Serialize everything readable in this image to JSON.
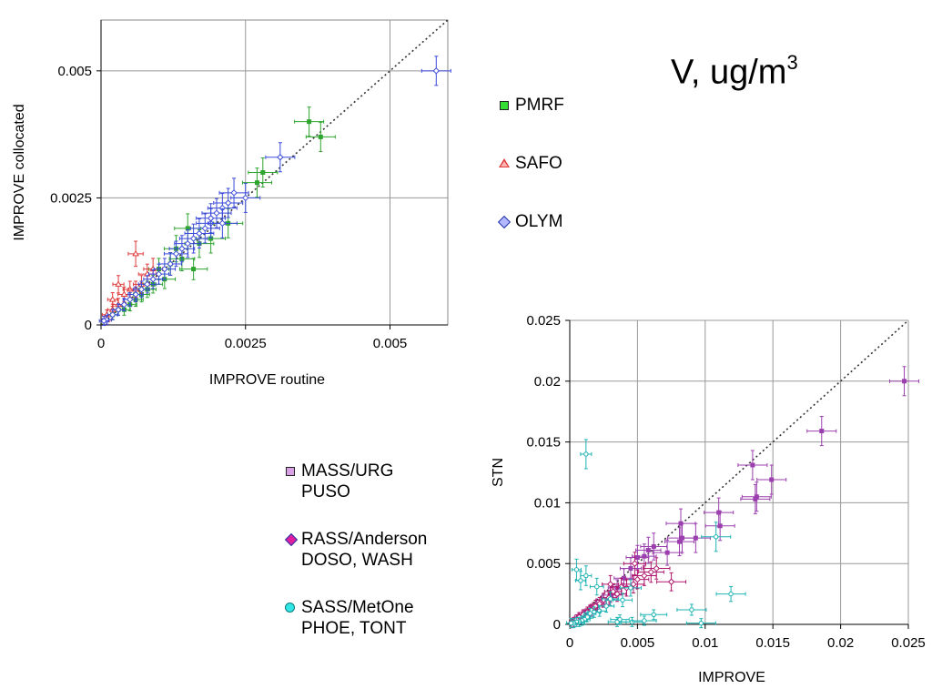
{
  "title": {
    "main": "V, ug/m",
    "sup": "3"
  },
  "colors": {
    "PMRF": "#2ea52e",
    "SAFO": "#e03b3b",
    "OLYM": "#3a4ad8",
    "MASS": "#9b3fae",
    "RASS": "#b0166e",
    "SASS": "#1fb3b3",
    "grid": "#999999"
  },
  "legend_top": [
    {
      "label": "PMRF",
      "marker": "square",
      "color": "#33dd33"
    },
    {
      "label": "SAFO",
      "marker": "triangle",
      "color": "#ffb3b3"
    },
    {
      "label": "OLYM",
      "marker": "diamond",
      "color": "#b3b8ff"
    }
  ],
  "legend_bottom": [
    {
      "line1": "MASS/URG",
      "line2": "PUSO",
      "marker": "square",
      "color": "#d9a0e6"
    },
    {
      "line1": "RASS/Anderson",
      "line2": "DOSO, WASH",
      "marker": "diamond",
      "color": "#e01fa0"
    },
    {
      "line1": "SASS/MetOne",
      "line2": "PHOE, TONT",
      "marker": "circle",
      "color": "#33e6e6"
    }
  ],
  "chart_data": [
    {
      "type": "scatter",
      "title": "",
      "xlabel": "IMPROVE routine",
      "ylabel": "IMPROVE collocated",
      "xlim": [
        0,
        0.006
      ],
      "ylim": [
        0,
        0.006
      ],
      "xticks": [
        "0",
        "0.0025",
        "0.005"
      ],
      "yticks": [
        "0",
        "0.0025",
        "0.005"
      ],
      "tick_values": [
        0,
        0.0025,
        0.005
      ],
      "one_to_one_line": true,
      "grid": true,
      "series": [
        {
          "name": "PMRF",
          "points": [
            [
              0.0036,
              0.004
            ],
            [
              0.0038,
              0.0037
            ],
            [
              0.0028,
              0.003
            ],
            [
              0.0027,
              0.0028
            ],
            [
              0.0022,
              0.002
            ],
            [
              0.0019,
              0.0017
            ],
            [
              0.0016,
              0.0011
            ],
            [
              0.0015,
              0.0019
            ],
            [
              0.0013,
              0.0015
            ],
            [
              0.0012,
              0.0012
            ],
            [
              0.001,
              0.0011
            ],
            [
              0.0009,
              0.0008
            ],
            [
              0.0008,
              0.0007
            ],
            [
              0.0007,
              0.0006
            ],
            [
              0.0006,
              0.0005
            ],
            [
              0.0005,
              0.0004
            ],
            [
              0.0004,
              0.0003
            ],
            [
              0.0003,
              0.0003
            ],
            [
              0.0002,
              0.0002
            ],
            [
              0.0011,
              0.0009
            ],
            [
              0.0014,
              0.0013
            ],
            [
              0.0017,
              0.0016
            ]
          ]
        },
        {
          "name": "SAFO",
          "points": [
            [
              0.0006,
              0.0014
            ],
            [
              0.0003,
              0.0008
            ],
            [
              0.0002,
              0.0005
            ],
            [
              0.0004,
              0.0006
            ],
            [
              0.0001,
              0.0002
            ],
            [
              0.0005,
              0.0007
            ],
            [
              0.0007,
              0.0008
            ],
            [
              0.0008,
              0.001
            ],
            [
              0.0009,
              0.0011
            ],
            [
              0.0001,
              0.0001
            ],
            [
              0.0002,
              0.0003
            ],
            [
              0.0003,
              0.0004
            ],
            [
              0.0006,
              0.0007
            ]
          ]
        },
        {
          "name": "OLYM",
          "points": [
            [
              0.0058,
              0.005
            ],
            [
              0.0031,
              0.0033
            ],
            [
              0.0025,
              0.0025
            ],
            [
              0.0023,
              0.0026
            ],
            [
              0.0022,
              0.0024
            ],
            [
              0.0021,
              0.0023
            ],
            [
              0.002,
              0.0022
            ],
            [
              0.0019,
              0.002
            ],
            [
              0.0018,
              0.0019
            ],
            [
              0.0016,
              0.0017
            ],
            [
              0.0015,
              0.0016
            ],
            [
              0.0014,
              0.0015
            ],
            [
              0.0013,
              0.0014
            ],
            [
              0.0012,
              0.0012
            ],
            [
              0.0011,
              0.0011
            ],
            [
              0.001,
              0.001
            ],
            [
              0.0009,
              0.0009
            ],
            [
              0.0008,
              0.0008
            ],
            [
              0.0007,
              0.0007
            ],
            [
              0.0006,
              0.0006
            ],
            [
              0.0005,
              0.0005
            ],
            [
              0.0004,
              0.0004
            ],
            [
              0.0003,
              0.0003
            ],
            [
              0.0002,
              0.0002
            ],
            [
              0.0001,
              0.0001
            ],
            [
              5e-05,
              8e-05
            ],
            [
              0.0017,
              0.0018
            ],
            [
              0.0019,
              0.0021
            ],
            [
              0.0021,
              0.002
            ]
          ]
        }
      ]
    },
    {
      "type": "scatter",
      "title": "",
      "xlabel": "IMPROVE",
      "ylabel": "STN",
      "xlim": [
        0,
        0.025
      ],
      "ylim": [
        0,
        0.025
      ],
      "xticks": [
        "0",
        "0.005",
        "0.01",
        "0.015",
        "0.02",
        "0.025"
      ],
      "yticks": [
        "0",
        "0.005",
        "0.01",
        "0.015",
        "0.02",
        "0.025"
      ],
      "tick_values": [
        0,
        0.005,
        0.01,
        0.015,
        0.02,
        0.025
      ],
      "one_to_one_line": true,
      "grid": true,
      "series": [
        {
          "name": "MASS/URG",
          "points": [
            [
              0.0247,
              0.02
            ],
            [
              0.0186,
              0.0159
            ],
            [
              0.0135,
              0.0131
            ],
            [
              0.0149,
              0.0119
            ],
            [
              0.0137,
              0.0103
            ],
            [
              0.0138,
              0.0105
            ],
            [
              0.011,
              0.0092
            ],
            [
              0.0111,
              0.0081
            ],
            [
              0.0082,
              0.0083
            ],
            [
              0.0083,
              0.0071
            ],
            [
              0.0081,
              0.0068
            ],
            [
              0.0093,
              0.0071
            ],
            [
              0.0072,
              0.0059
            ],
            [
              0.0062,
              0.0064
            ],
            [
              0.0058,
              0.0061
            ],
            [
              0.0055,
              0.0056
            ],
            [
              0.005,
              0.0055
            ],
            [
              0.0045,
              0.0046
            ],
            [
              0.004,
              0.0038
            ],
            [
              0.0035,
              0.003
            ],
            [
              0.003,
              0.0024
            ],
            [
              0.0025,
              0.002
            ],
            [
              0.002,
              0.0015
            ],
            [
              0.0015,
              0.0011
            ],
            [
              0.001,
              0.0008
            ],
            [
              0.0005,
              0.0004
            ]
          ]
        },
        {
          "name": "RASS/Anderson",
          "points": [
            [
              0.0075,
              0.0035
            ],
            [
              0.006,
              0.0043
            ],
            [
              0.0055,
              0.004
            ],
            [
              0.005,
              0.0037
            ],
            [
              0.0047,
              0.0033
            ],
            [
              0.0042,
              0.003
            ],
            [
              0.0038,
              0.0031
            ],
            [
              0.0035,
              0.0025
            ],
            [
              0.0032,
              0.0027
            ],
            [
              0.0029,
              0.0022
            ],
            [
              0.0025,
              0.002
            ],
            [
              0.0022,
              0.0017
            ],
            [
              0.0019,
              0.0015
            ],
            [
              0.0016,
              0.0012
            ],
            [
              0.0013,
              0.001
            ],
            [
              0.001,
              0.0008
            ],
            [
              0.0007,
              0.0006
            ],
            [
              0.0005,
              0.0004
            ],
            [
              0.0003,
              0.0002
            ],
            [
              0.0001,
              0.0001
            ],
            [
              0.0048,
              0.005
            ],
            [
              0.0064,
              0.0046
            ],
            [
              0.003,
              0.0033
            ]
          ]
        },
        {
          "name": "SASS/MetOne",
          "points": [
            [
              0.0012,
              0.014
            ],
            [
              0.0119,
              0.0025
            ],
            [
              0.0108,
              0.0072
            ],
            [
              0.009,
              0.0012
            ],
            [
              0.0097,
              0.0001
            ],
            [
              0.0045,
              0.003
            ],
            [
              0.0039,
              0.002
            ],
            [
              0.003,
              0.0021
            ],
            [
              0.0027,
              0.0015
            ],
            [
              0.0022,
              0.0011
            ],
            [
              0.0018,
              0.001
            ],
            [
              0.0015,
              0.0009
            ],
            [
              0.0013,
              0.0006
            ],
            [
              0.0011,
              0.0004
            ],
            [
              0.0009,
              0.0003
            ],
            [
              0.0007,
              0.0002
            ],
            [
              0.0005,
              0.0002
            ],
            [
              0.0003,
              0.0001
            ],
            [
              0.0001,
              0.0001
            ],
            [
              0.0008,
              0.0036
            ],
            [
              0.0012,
              0.004
            ],
            [
              0.0005,
              0.0045
            ],
            [
              0.002,
              0.0031
            ],
            [
              0.0037,
              0.0004
            ],
            [
              0.0046,
              0.0002
            ],
            [
              0.0055,
              0.0003
            ],
            [
              0.0062,
              0.0008
            ],
            [
              0.0035,
              0.0002
            ]
          ]
        }
      ]
    }
  ]
}
